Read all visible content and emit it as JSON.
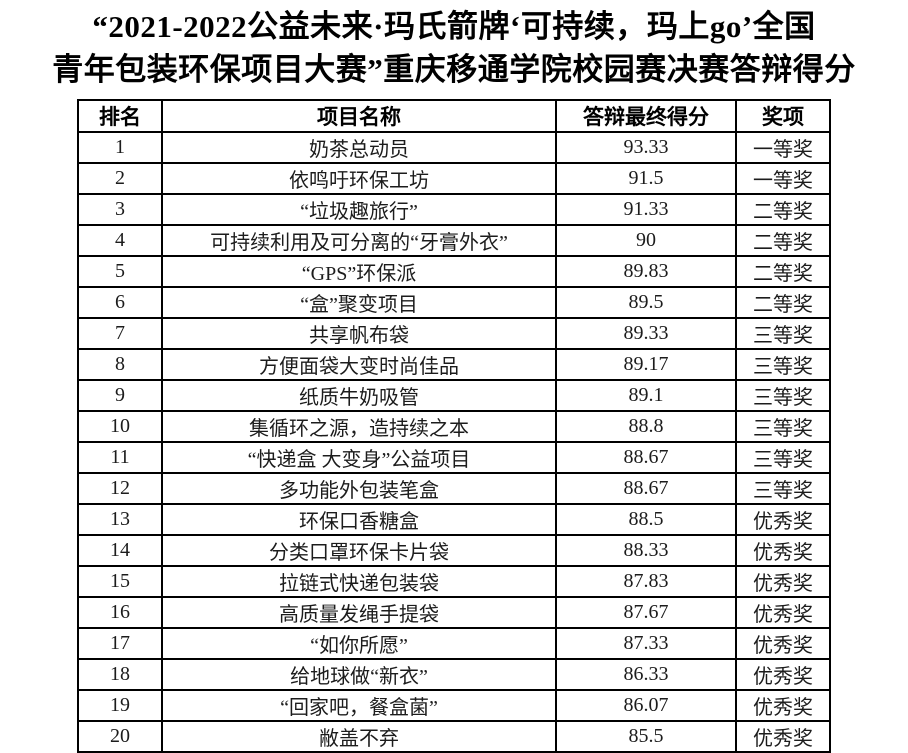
{
  "title": {
    "line1": "“2021-2022公益未来·玛氏箭牌‘可持续，玛上go’全国",
    "line2": "青年包装环保项目大赛”重庆移通学院校园赛决赛答辩得分"
  },
  "table": {
    "headers": [
      "排名",
      "项目名称",
      "答辩最终得分",
      "奖项"
    ],
    "rows": [
      {
        "rank": "1",
        "project": "奶茶总动员",
        "score": "93.33",
        "award": "一等奖"
      },
      {
        "rank": "2",
        "project": "依鸣吁环保工坊",
        "score": "91.5",
        "award": "一等奖"
      },
      {
        "rank": "3",
        "project": "“垃圾趣旅行”",
        "score": "91.33",
        "award": "二等奖"
      },
      {
        "rank": "4",
        "project": "可持续利用及可分离的“牙膏外衣”",
        "score": "90",
        "award": "二等奖"
      },
      {
        "rank": "5",
        "project": "“GPS”环保派",
        "score": "89.83",
        "award": "二等奖"
      },
      {
        "rank": "6",
        "project": "“盒”聚变项目",
        "score": "89.5",
        "award": "二等奖"
      },
      {
        "rank": "7",
        "project": "共享帆布袋",
        "score": "89.33",
        "award": "三等奖"
      },
      {
        "rank": "8",
        "project": "方便面袋大变时尚佳品",
        "score": "89.17",
        "award": "三等奖"
      },
      {
        "rank": "9",
        "project": "纸质牛奶吸管",
        "score": "89.1",
        "award": "三等奖"
      },
      {
        "rank": "10",
        "project": "集循环之源，造持续之本",
        "score": "88.8",
        "award": "三等奖"
      },
      {
        "rank": "11",
        "project": "“快递盒 大变身”公益项目",
        "score": "88.67",
        "award": "三等奖"
      },
      {
        "rank": "12",
        "project": "多功能外包装笔盒",
        "score": "88.67",
        "award": "三等奖"
      },
      {
        "rank": "13",
        "project": "环保口香糖盒",
        "score": "88.5",
        "award": "优秀奖"
      },
      {
        "rank": "14",
        "project": "分类口罩环保卡片袋",
        "score": "88.33",
        "award": "优秀奖"
      },
      {
        "rank": "15",
        "project": "拉链式快递包装袋",
        "score": "87.83",
        "award": "优秀奖"
      },
      {
        "rank": "16",
        "project": "高质量发绳手提袋",
        "score": "87.67",
        "award": "优秀奖"
      },
      {
        "rank": "17",
        "project": "“如你所愿”",
        "score": "87.33",
        "award": "优秀奖"
      },
      {
        "rank": "18",
        "project": "给地球做“新衣”",
        "score": "86.33",
        "award": "优秀奖"
      },
      {
        "rank": "19",
        "project": "“回家吧，餐盒菌”",
        "score": "86.07",
        "award": "优秀奖"
      },
      {
        "rank": "20",
        "project": "敝盖不弃",
        "score": "85.5",
        "award": "优秀奖"
      }
    ]
  }
}
